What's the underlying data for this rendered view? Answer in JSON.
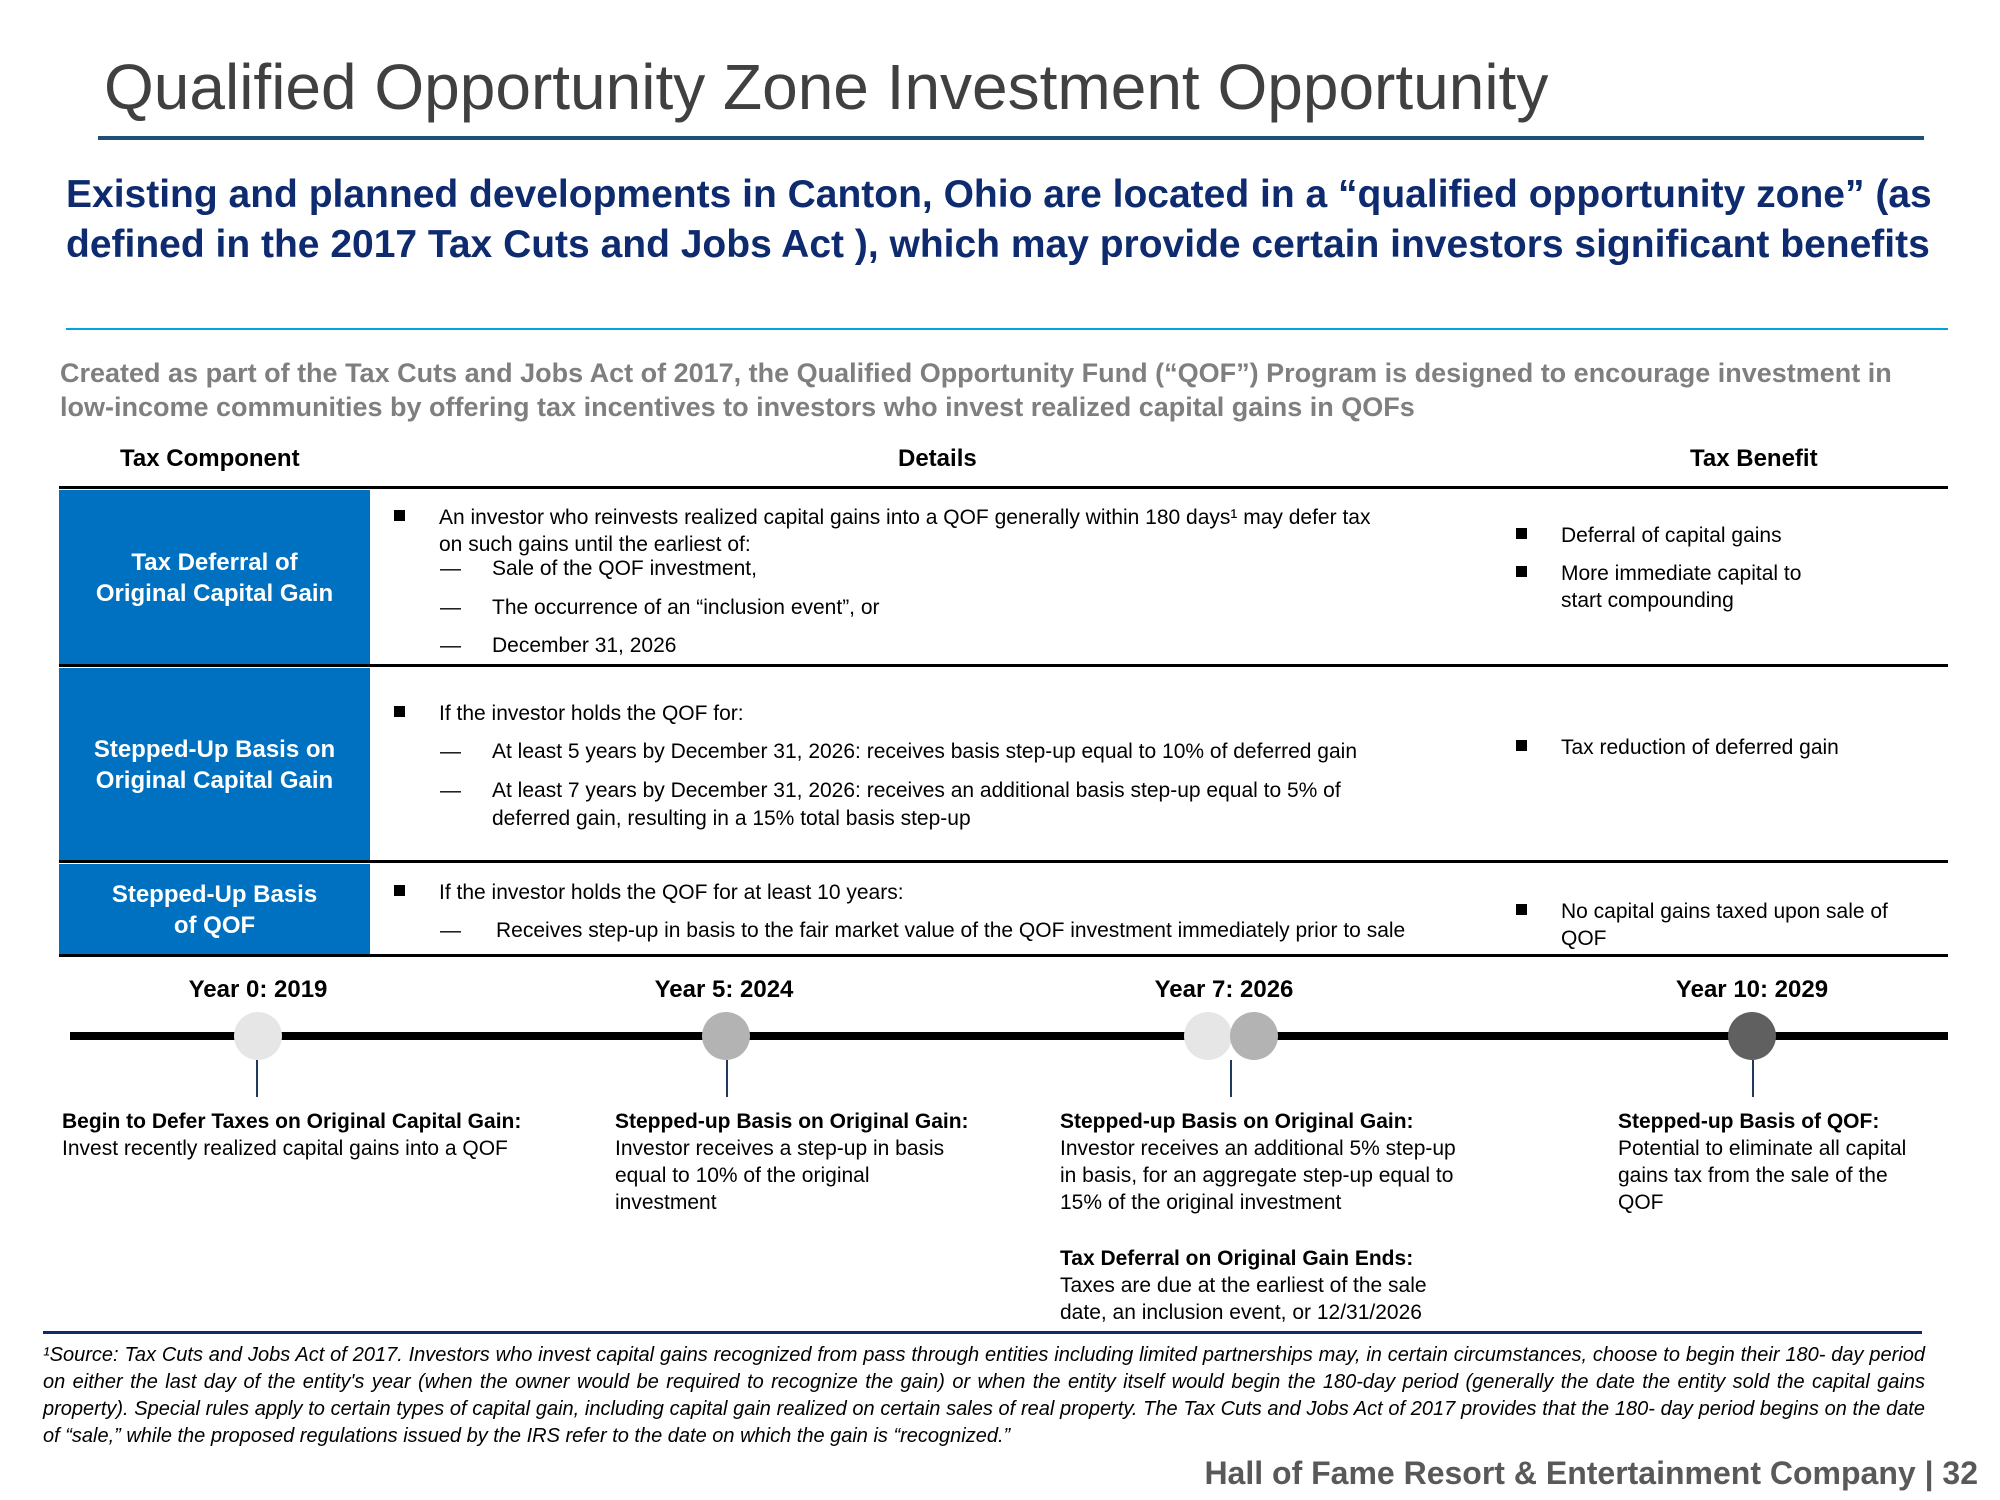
{
  "title": "Qualified Opportunity Zone Investment Opportunity",
  "subtitle": "Existing and planned developments in Canton, Ohio are located in a “qualified opportunity zone” (as defined in the 2017 Tax Cuts and Jobs Act ), which may provide certain investors significant benefits",
  "intro": "Created as part of the Tax Cuts and Jobs Act of 2017, the Qualified Opportunity Fund (“QOF”) Program is designed to encourage investment in low-income communities by offering  tax incentives to investors who invest realized capital gains in QOFs",
  "table": {
    "headers": [
      "Tax Component",
      "Details",
      "Tax Benefit"
    ],
    "rows": [
      {
        "component": [
          "Tax Deferral of",
          "Original Capital Gain"
        ],
        "bullet": [
          "An investor who reinvests realized capital gains into a QOF generally within 180 days¹ may defer tax",
          "on such  gains until the earliest of:"
        ],
        "subs": [
          "Sale of the QOF investment,",
          "The occurrence of an “inclusion event”, or",
          "December 31, 2026"
        ],
        "benefits": [
          [
            "Deferral of capital gains"
          ],
          [
            "More immediate capital to",
            "start  compounding"
          ]
        ]
      },
      {
        "component": [
          "Stepped-Up Basis on",
          "Original Capital Gain"
        ],
        "bullet": [
          "If the investor holds the QOF for:"
        ],
        "subs": [
          "At least 5 years by December 31, 2026: receives basis step-up equal to 10% of deferred  gain",
          "At least 7 years by December 31, 2026: receives an additional basis step-up equal to 5% of",
          "deferred gain,  resulting in a 15% total basis step-up"
        ],
        "benefits": [
          [
            "Tax reduction of deferred gain"
          ]
        ]
      },
      {
        "component": [
          "Stepped-Up Basis",
          "of QOF"
        ],
        "bullet": [
          "If the investor holds the QOF for at least 10 years:"
        ],
        "subs": [
          "Receives step-up in basis to the fair market value of the QOF investment immediately prior to sale"
        ],
        "benefits": [
          [
            "No capital gains taxed upon sale of",
            "QOF"
          ]
        ]
      }
    ]
  },
  "timeline": {
    "years": [
      "Year 0: 2019",
      "Year 5: 2024",
      "Year 7: 2026",
      "Year 10: 2029"
    ],
    "dot_colors": [
      "#e6e6e6",
      "#b3b3b3",
      "#e6e6e6",
      "#b3b3b3",
      "#606060"
    ],
    "captions": [
      {
        "head": "Begin to Defer Taxes on Original Capital Gain:",
        "lines": [
          "Invest recently realized capital gains into a  QOF"
        ]
      },
      {
        "head": "Stepped-up Basis on Original Gain:",
        "lines": [
          "Investor receives a step-up in basis",
          "equal to 10% of the original",
          "investment"
        ]
      },
      {
        "head": "Stepped-up Basis on Original Gain:",
        "lines": [
          "Investor receives an additional 5% step-up",
          "in basis, for an aggregate step-up equal to",
          "15% of the original investment"
        ]
      },
      {
        "head": "Tax Deferral on Original Gain Ends:",
        "lines": [
          "Taxes are due at the earliest of the sale",
          "date, an inclusion event, or 12/31/2026"
        ]
      },
      {
        "head": "Stepped-up Basis of QOF:",
        "lines": [
          "Potential to eliminate all capital",
          "gains  tax from the sale of the",
          "QOF"
        ]
      }
    ]
  },
  "footnote": "¹Source: Tax Cuts and Jobs Act of 2017. Investors who invest capital gains recognized from pass through entities including limited partnerships may, in certain circumstances, choose to begin their 180-  day period on either the last day of the entity's year (when the owner would be required to recognize the gain) or when the entity itself would begin the 180-day period (generally the date the entity sold  the capital gains property). Special rules apply to certain types of capital gain, including capital gain realized on certain sales of real property. The Tax Cuts and Jobs Act of 2017 provides that the 180-  day period begins on the date of “sale,” while the proposed regulations issued by the IRS refer to the date on which the gain is “recognized.”",
  "brand": "Hall of Fame Resort & Entertainment Company | 32",
  "colors": {
    "table_blue": "#0070c0",
    "subtitle_navy": "#0d2b6e",
    "accent_cyan": "#00a3e0"
  }
}
